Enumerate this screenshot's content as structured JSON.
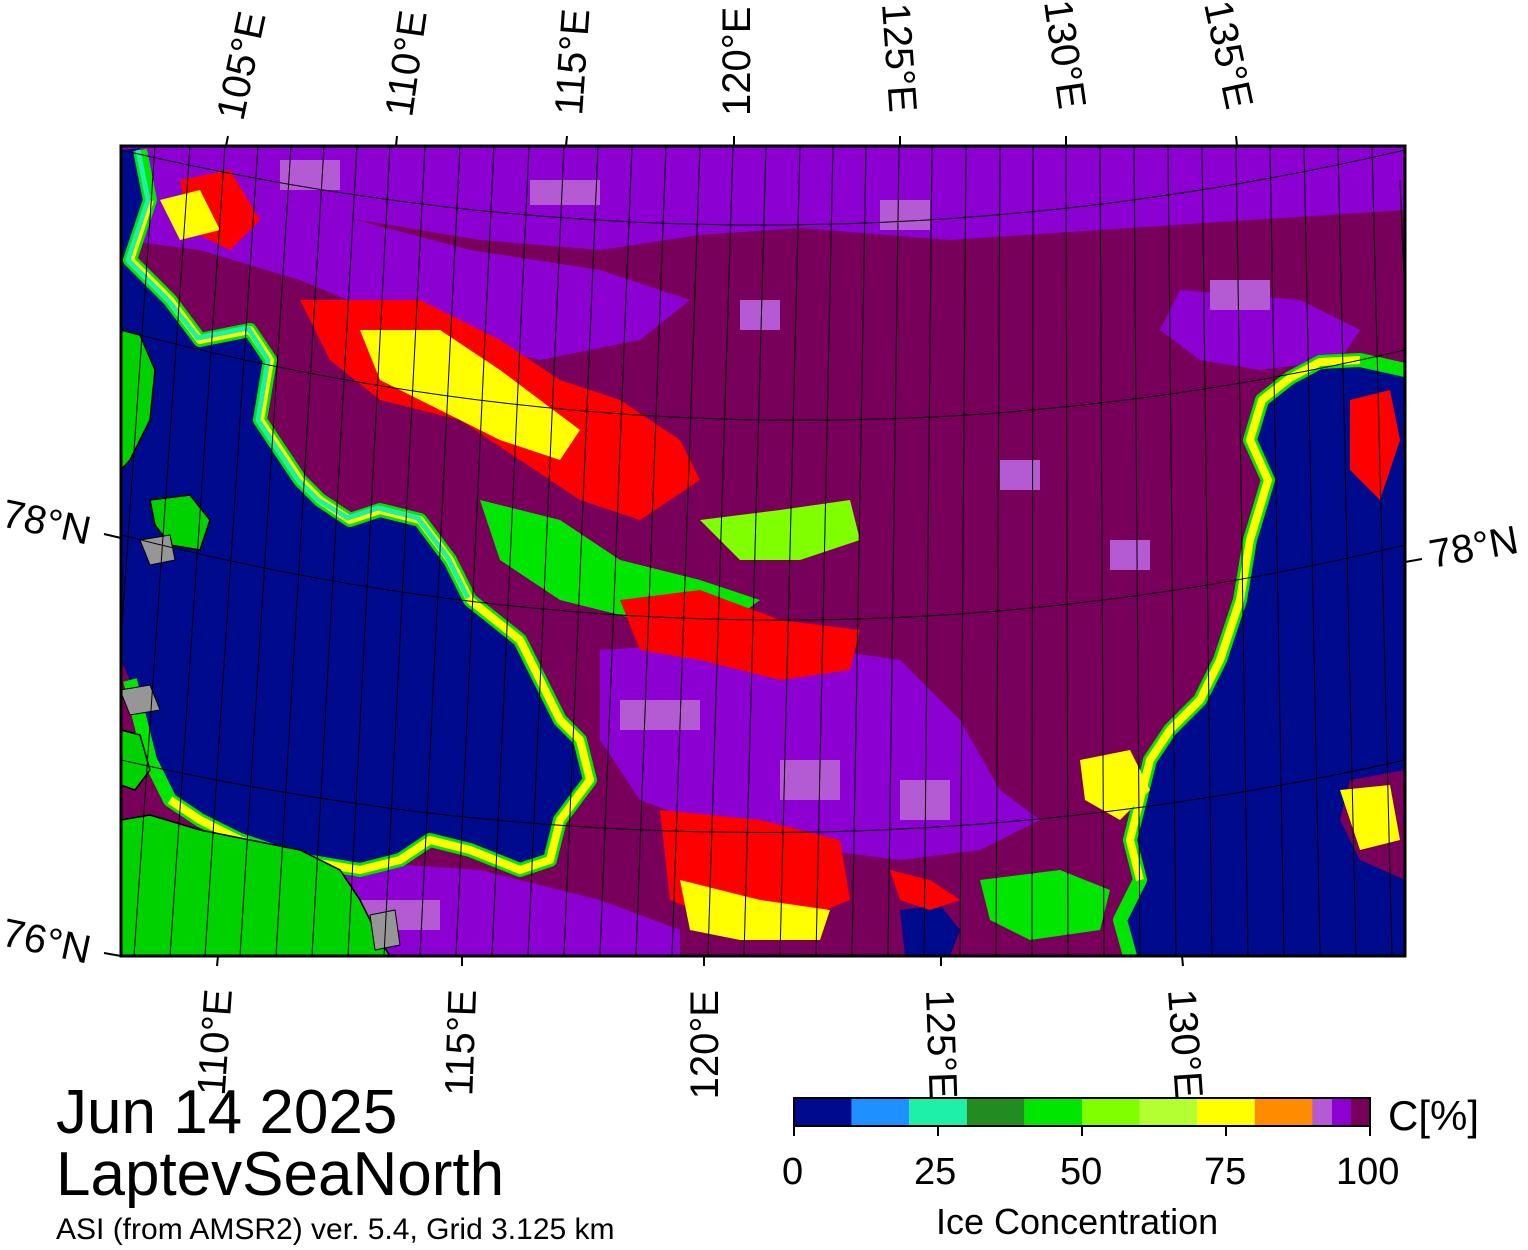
{
  "map": {
    "date": "Jun 14 2025",
    "region": "LaptevSeaNorth",
    "source": "ASI (from AMSR2) ver. 5.4,  Grid 3.125 km",
    "top_lon_labels": [
      "105°E",
      "110°E",
      "115°E",
      "120°E",
      "125°E",
      "130°E",
      "135°E"
    ],
    "bottom_lon_labels": [
      "110°E",
      "115°E",
      "120°E",
      "125°E",
      "130°E"
    ],
    "left_lat_labels": [
      "78°N",
      "76°N"
    ],
    "right_lat_labels": [
      "78°N"
    ]
  },
  "colorbar": {
    "unit": "C[%]",
    "title": "Ice Concentration",
    "tick_labels": [
      "0",
      "25",
      "50",
      "75",
      "100"
    ],
    "colors": [
      "#000a8c",
      "#1e90ff",
      "#1ef0aa",
      "#228b22",
      "#00e600",
      "#7fff00",
      "#b4ff32",
      "#ffff00",
      "#ff8c00",
      "#ff0000",
      "#b45ad2",
      "#8c00d2",
      "#78005a"
    ]
  },
  "palette": {
    "water": "#000a8c",
    "land": "#00d200",
    "land_gray": "#969696",
    "ice_dense": "#78005a",
    "ice_purple": "#8c00d2",
    "ice_lilac": "#b45ad2",
    "ice_red": "#ff0000",
    "ice_yellow": "#ffff00",
    "ice_green": "#00e600"
  }
}
